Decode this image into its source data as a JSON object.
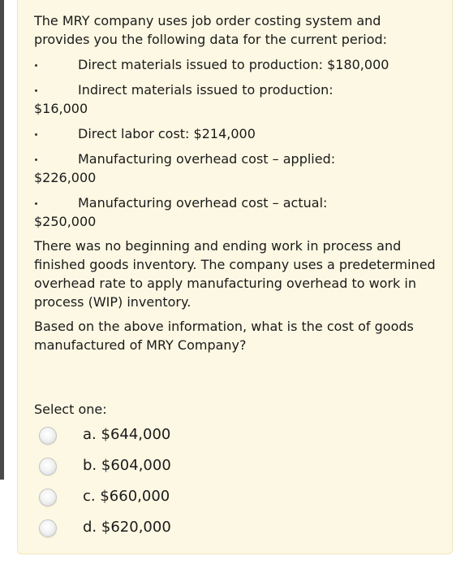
{
  "question": {
    "intro": "The MRY company uses job order costing system and provides you the following data for the current period:",
    "items": [
      {
        "label": "Direct materials issued to production: $180,000",
        "overflow": ""
      },
      {
        "label": "Indirect materials issued to production:",
        "overflow": "$16,000"
      },
      {
        "label": "Direct labor cost: $214,000",
        "overflow": ""
      },
      {
        "label": "Manufacturing overhead cost – applied:",
        "overflow": "$226,000"
      },
      {
        "label": "Manufacturing overhead cost – actual:",
        "overflow": "$250,000"
      }
    ],
    "paragraph": "There was no beginning and ending work in process and finished goods inventory. The company uses a predetermined overhead rate to apply manufacturing overhead to work in process (WIP) inventory.",
    "prompt": "Based on the above information, what is the cost of goods manufactured of MRY Company?"
  },
  "answer": {
    "select_label": "Select one:",
    "options": [
      {
        "letter": "a.",
        "value": "$644,000"
      },
      {
        "letter": "b.",
        "value": "$604,000"
      },
      {
        "letter": "c.",
        "value": "$660,000"
      },
      {
        "letter": "d.",
        "value": "$620,000"
      }
    ]
  },
  "colors": {
    "card_background": "#fcf8e3",
    "card_border": "#f2e6b9",
    "text": "#1a1a1a"
  }
}
